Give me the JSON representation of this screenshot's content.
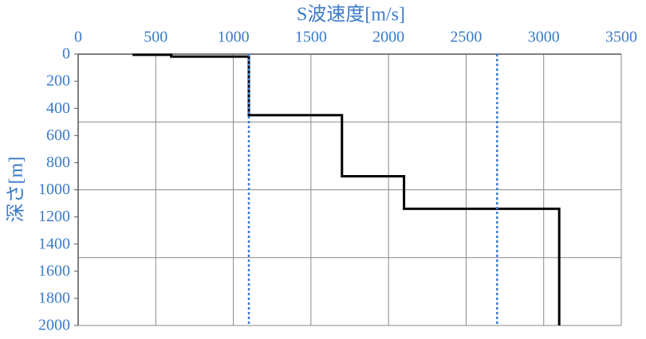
{
  "chart_data": {
    "type": "line",
    "title": "S波速度[m/s]",
    "y_label": "深さ[m]",
    "xlim": [
      0,
      3500
    ],
    "xticks": [
      0,
      500,
      1000,
      1500,
      2000,
      2500,
      3000,
      3500
    ],
    "ylim": [
      0,
      2000
    ],
    "yticks": [
      0,
      200,
      400,
      600,
      800,
      1000,
      1200,
      1400,
      1600,
      1800,
      2000
    ],
    "ygrid": [
      0,
      500,
      1000,
      1500,
      2000
    ],
    "y_inverted": true,
    "grid": true,
    "series": [
      {
        "color": "#000000",
        "dash": "none",
        "x": [
          350,
          600,
          600,
          1100,
          1100,
          1700,
          1700,
          2100,
          2100,
          3100,
          3100
        ],
        "values": [
          5,
          5,
          18,
          18,
          450,
          450,
          900,
          900,
          1140,
          1140,
          2000
        ]
      },
      {
        "color": "#3b7bd4",
        "dash": "3,3",
        "x": [
          1100,
          1100
        ],
        "values": [
          0,
          2000
        ]
      },
      {
        "color": "#3b7bd4",
        "dash": "3,3",
        "x": [
          2700,
          2700
        ],
        "values": [
          0,
          2000
        ]
      }
    ]
  }
}
